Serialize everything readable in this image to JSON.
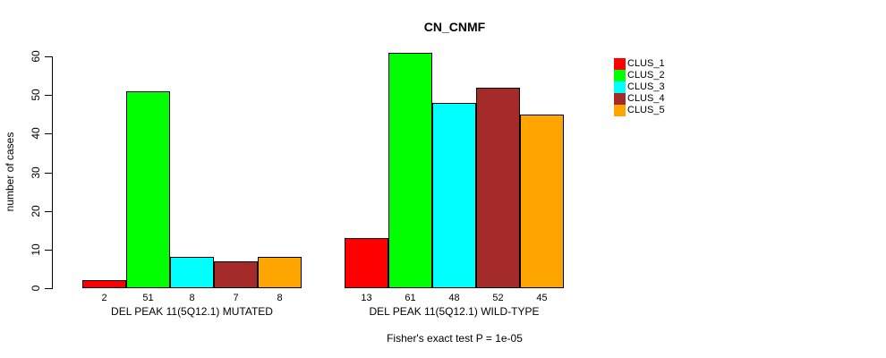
{
  "title": "CN_CNMF",
  "footer": "Fisher's exact test P = 1e-05",
  "chart_data": {
    "type": "bar",
    "title": "CN_CNMF",
    "subtitle": "Fisher's exact test P = 1e-05",
    "xlabel": "",
    "ylabel": "number of cases",
    "ylim": [
      0,
      60
    ],
    "yticks": [
      0,
      10,
      20,
      30,
      40,
      50,
      60
    ],
    "grid": false,
    "legend_position": "right",
    "categories": [
      "DEL PEAK 11(5Q12.1) MUTATED",
      "DEL PEAK 11(5Q12.1) WILD-TYPE"
    ],
    "series": [
      {
        "name": "CLUS_1",
        "color": "#ff0000",
        "values": [
          2,
          13
        ]
      },
      {
        "name": "CLUS_2",
        "color": "#00ff00",
        "values": [
          51,
          61
        ]
      },
      {
        "name": "CLUS_3",
        "color": "#00ffff",
        "values": [
          8,
          48
        ]
      },
      {
        "name": "CLUS_4",
        "color": "#a52a2a",
        "values": [
          7,
          52
        ]
      },
      {
        "name": "CLUS_5",
        "color": "#ffa500",
        "values": [
          8,
          45
        ]
      }
    ],
    "bar_value_labels": [
      [
        "2",
        "51",
        "8",
        "7",
        "8"
      ],
      [
        "13",
        "61",
        "48",
        "52",
        "45"
      ]
    ]
  },
  "legend": {
    "items": [
      {
        "label": "CLUS_1",
        "color": "#ff0000"
      },
      {
        "label": "CLUS_2",
        "color": "#00ff00"
      },
      {
        "label": "CLUS_3",
        "color": "#00ffff"
      },
      {
        "label": "CLUS_4",
        "color": "#a52a2a"
      },
      {
        "label": "CLUS_5",
        "color": "#ffa500"
      }
    ]
  },
  "colors": {
    "background": "#ffffff",
    "axis": "#000000",
    "text": "#000000"
  }
}
